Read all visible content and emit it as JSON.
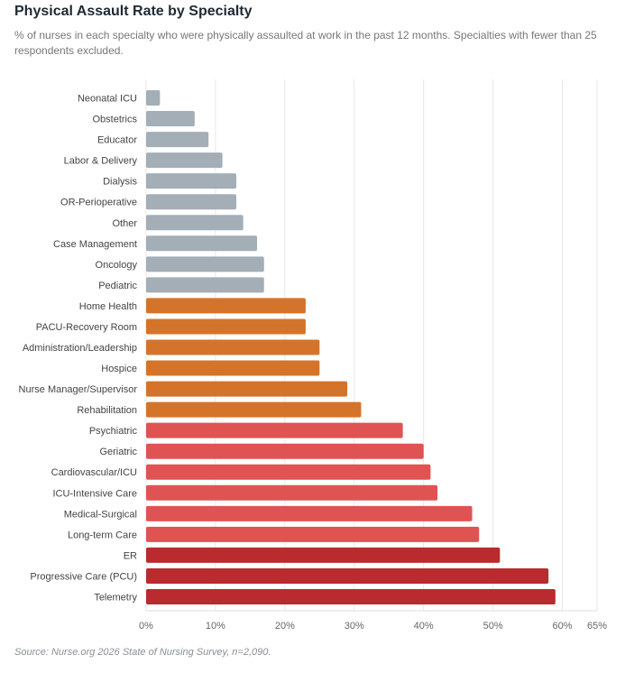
{
  "chart_data": {
    "type": "bar",
    "orientation": "horizontal",
    "title": "Physical Assault Rate by Specialty",
    "subtitle": "% of nurses in each specialty who were physically assaulted at work in the past 12 months. Specialties with fewer than 25 respondents excluded.",
    "source": "Source: Nurse.org 2026 State of Nursing Survey, n=2,090.",
    "xlim": [
      0,
      65
    ],
    "xticks": [
      0,
      10,
      20,
      30,
      40,
      50,
      60,
      65
    ],
    "xtick_labels": [
      "0%",
      "10%",
      "20%",
      "30%",
      "40%",
      "50%",
      "60%",
      "65%"
    ],
    "grid": "vertical",
    "categories": [
      "Neonatal ICU",
      "Obstetrics",
      "Educator",
      "Labor & Delivery",
      "Dialysis",
      "OR-Perioperative",
      "Other",
      "Case Management",
      "Oncology",
      "Pediatric",
      "Home Health",
      "PACU-Recovery Room",
      "Administration/Leadership",
      "Hospice",
      "Nurse Manager/Supervisor",
      "Rehabilitation",
      "Psychiatric",
      "Geriatric",
      "Cardiovascular/ICU",
      "ICU-Intensive Care",
      "Medical-Surgical",
      "Long-term Care",
      "ER",
      "Progressive Care (PCU)",
      "Telemetry"
    ],
    "values": [
      2,
      7,
      9,
      11,
      13,
      13,
      14,
      16,
      17,
      17,
      23,
      23,
      25,
      25,
      29,
      31,
      37,
      40,
      41,
      42,
      47,
      48,
      51,
      58,
      59
    ],
    "colors": {
      "lowest": "#a3aeb7",
      "low": "#d4742b",
      "high": "#e05353",
      "highest": "#b92b2e"
    },
    "color_groups": [
      "lowest",
      "lowest",
      "lowest",
      "lowest",
      "lowest",
      "lowest",
      "lowest",
      "lowest",
      "lowest",
      "lowest",
      "low",
      "low",
      "low",
      "low",
      "low",
      "low",
      "high",
      "high",
      "high",
      "high",
      "high",
      "high",
      "highest",
      "highest",
      "highest"
    ]
  }
}
